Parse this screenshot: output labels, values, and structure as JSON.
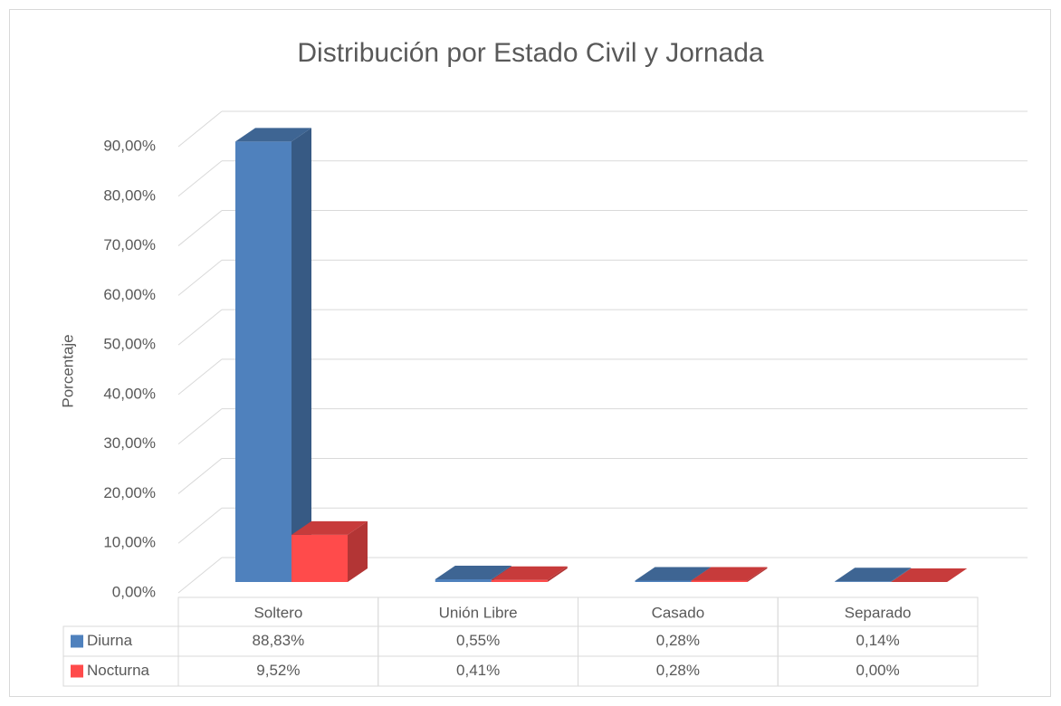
{
  "chart_data": {
    "type": "bar3d",
    "title": "Distribución por Estado Civil y Jornada",
    "y_label": "Porcentaje",
    "categories": [
      "Soltero",
      "Unión Libre",
      "Casado",
      "Separado"
    ],
    "series": [
      {
        "name": "Diurna",
        "color": "#4f81bd",
        "values": [
          88.83,
          0.55,
          0.28,
          0.14
        ],
        "value_labels": [
          "88,83%",
          "0,55%",
          "0,28%",
          "0,14%"
        ]
      },
      {
        "name": "Nocturna",
        "color": "#ff4b4b",
        "values": [
          9.52,
          0.41,
          0.28,
          0.0
        ],
        "value_labels": [
          "9,52%",
          "0,41%",
          "0,28%",
          "0,00%"
        ]
      }
    ],
    "ylim": [
      0,
      90
    ],
    "yticks": [
      {
        "value": 0,
        "label": "0,00%"
      },
      {
        "value": 10,
        "label": "10,00%"
      },
      {
        "value": 20,
        "label": "20,00%"
      },
      {
        "value": 30,
        "label": "30,00%"
      },
      {
        "value": 40,
        "label": "40,00%"
      },
      {
        "value": 50,
        "label": "50,00%"
      },
      {
        "value": 60,
        "label": "60,00%"
      },
      {
        "value": 70,
        "label": "70,00%"
      },
      {
        "value": 80,
        "label": "80,00%"
      },
      {
        "value": 90,
        "label": "90,00%"
      }
    ],
    "grid": true
  }
}
